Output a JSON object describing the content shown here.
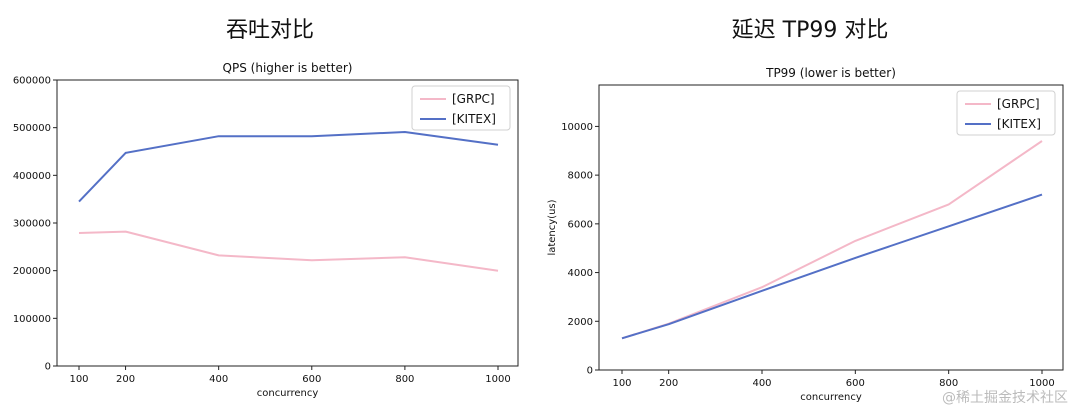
{
  "headings": [
    "吞吐对比",
    "延迟 TP99 对比"
  ],
  "watermark": "@稀土掘金技术社区",
  "colors": {
    "grpc": "#f4b8c8",
    "kitex": "#5470c6"
  },
  "chart_data": [
    {
      "type": "line",
      "title": "QPS (higher is better)",
      "xlabel": "concurrency",
      "ylabel": "",
      "x": [
        100,
        200,
        400,
        600,
        800,
        1000
      ],
      "ylim": [
        0,
        600000
      ],
      "yticks": [
        0,
        100000,
        200000,
        300000,
        400000,
        500000,
        600000
      ],
      "ytick_labels": [
        "0",
        "100000",
        "200000",
        "300000",
        "400000",
        "500000",
        "600000"
      ],
      "xticks": [
        100,
        200,
        400,
        600,
        800,
        1000
      ],
      "legend": "top-right",
      "grid": false,
      "series": [
        {
          "name": "[GRPC]",
          "color": "#f4b8c8",
          "values": [
            279000,
            282000,
            232000,
            222000,
            228000,
            200000
          ]
        },
        {
          "name": "[KITEX]",
          "color": "#5470c6",
          "values": [
            345000,
            447000,
            482000,
            482000,
            491000,
            464000
          ]
        }
      ]
    },
    {
      "type": "line",
      "title": "TP99 (lower is better)",
      "xlabel": "concurrency",
      "ylabel": "latency(us)",
      "x": [
        100,
        200,
        400,
        600,
        800,
        1000
      ],
      "ylim": [
        0,
        11700
      ],
      "yticks": [
        0,
        2000,
        4000,
        6000,
        8000,
        10000
      ],
      "ytick_labels": [
        "0",
        "2000",
        "4000",
        "6000",
        "8000",
        "10000"
      ],
      "xticks": [
        100,
        200,
        400,
        600,
        800,
        1000
      ],
      "legend": "top-right",
      "grid": false,
      "series": [
        {
          "name": "[GRPC]",
          "color": "#f4b8c8",
          "values": [
            1300,
            1900,
            3400,
            5300,
            6800,
            9400
          ]
        },
        {
          "name": "[KITEX]",
          "color": "#5470c6",
          "values": [
            1300,
            1880,
            3250,
            4600,
            5900,
            7200
          ]
        }
      ]
    }
  ]
}
